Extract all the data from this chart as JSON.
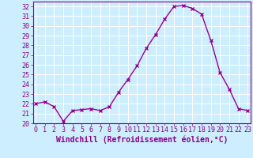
{
  "x": [
    0,
    1,
    2,
    3,
    4,
    5,
    6,
    7,
    8,
    9,
    10,
    11,
    12,
    13,
    14,
    15,
    16,
    17,
    18,
    19,
    20,
    21,
    22,
    23
  ],
  "y": [
    22.0,
    22.2,
    21.7,
    20.2,
    21.3,
    21.4,
    21.5,
    21.3,
    21.7,
    23.2,
    24.5,
    25.9,
    27.7,
    29.1,
    30.7,
    32.0,
    32.1,
    31.8,
    31.2,
    28.5,
    25.2,
    23.5,
    21.5,
    21.3
  ],
  "line_color": "#990099",
  "marker": "x",
  "marker_size": 3,
  "linewidth": 1.0,
  "xlabel": "Windchill (Refroidissement éolien,°C)",
  "xlabel_fontsize": 7,
  "ylabel_ticks": [
    20,
    21,
    22,
    23,
    24,
    25,
    26,
    27,
    28,
    29,
    30,
    31,
    32
  ],
  "xticks": [
    0,
    1,
    2,
    3,
    4,
    5,
    6,
    7,
    8,
    9,
    10,
    11,
    12,
    13,
    14,
    15,
    16,
    17,
    18,
    19,
    20,
    21,
    22,
    23
  ],
  "xlim": [
    -0.3,
    23.3
  ],
  "ylim": [
    20,
    32.5
  ],
  "background_color": "#cceeff",
  "grid_color": "#aaddcc",
  "tick_color": "#880088",
  "tick_fontsize": 6,
  "spine_color": "#880088"
}
